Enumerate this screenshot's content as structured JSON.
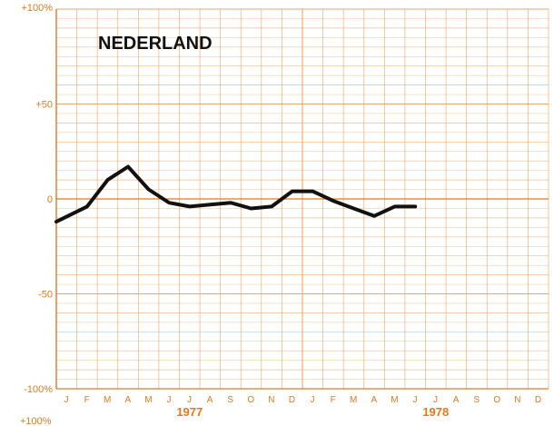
{
  "chart_data": {
    "type": "line",
    "title": "NEDERLAND",
    "ylim": [
      -100,
      100
    ],
    "y_ticks": [
      "+100%",
      "+50",
      "0",
      "-50",
      "-100%"
    ],
    "y_tick_values": [
      100,
      50,
      0,
      -50,
      -100
    ],
    "bottom_clip_label": "+100%",
    "month_labels": [
      "J",
      "F",
      "M",
      "A",
      "M",
      "J",
      "J",
      "A",
      "S",
      "O",
      "N",
      "D",
      "J",
      "F",
      "M",
      "A",
      "M",
      "J",
      "J",
      "A",
      "S",
      "O",
      "N",
      "D"
    ],
    "year_labels": [
      {
        "label": "1977",
        "month_index": 6
      },
      {
        "label": "1978",
        "month_index": 18
      }
    ],
    "grid": true,
    "series": [
      {
        "values": [
          -12,
          -4,
          10,
          17,
          5,
          -2,
          -4,
          -3,
          -2,
          -5,
          -4,
          4,
          4,
          -1,
          -5,
          -9,
          -4,
          -4
        ]
      }
    ],
    "colors": {
      "grid": "#f0a060",
      "axis": "#e07a1f",
      "line": "#111111"
    }
  }
}
